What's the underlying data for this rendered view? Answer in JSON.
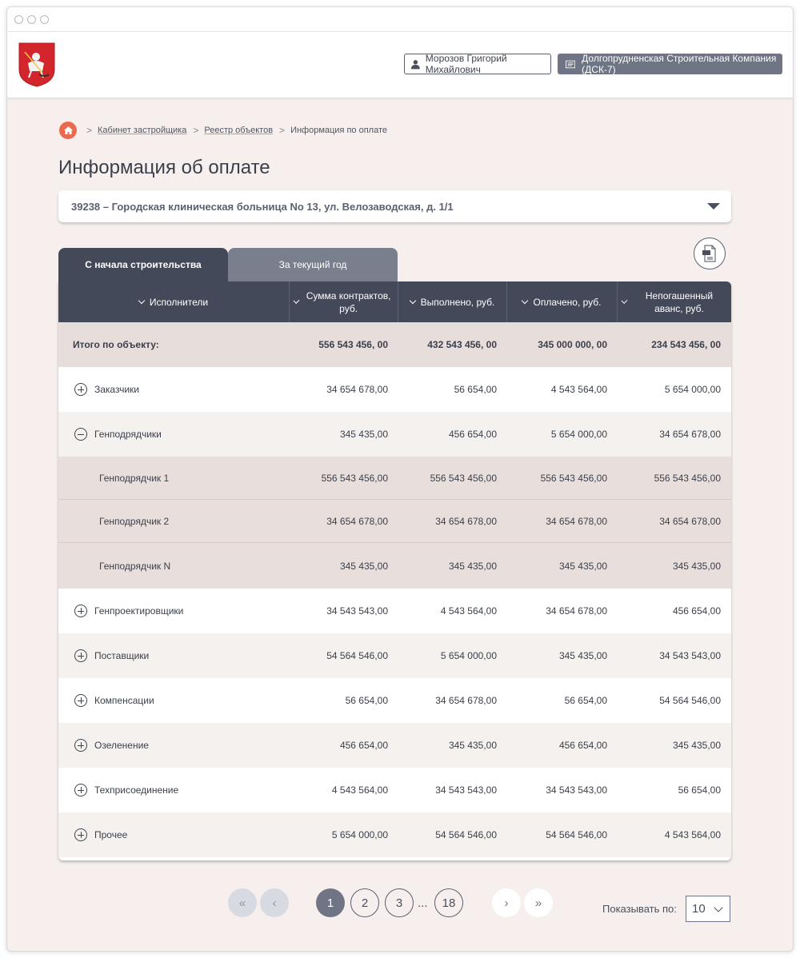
{
  "header": {
    "user_name": "Морозов Григорий Михайлович",
    "company_name": "Долгопрудненская Строительная Компания (ДСК-7)"
  },
  "breadcrumb": {
    "items": [
      "Кабинет застройщика",
      "Реестр объектов"
    ],
    "current": "Информация по оплате"
  },
  "page_title": "Информация об оплате",
  "object_select": {
    "value": "39238 – Городская клиническая больница No 13, ул. Велозаводская, д. 1/1"
  },
  "tabs": [
    {
      "label": "С начала строительства",
      "active": true
    },
    {
      "label": "За текущий год",
      "active": false
    }
  ],
  "table": {
    "columns": [
      "Исполнители",
      "Сумма контрактов, руб.",
      "Выполнено, руб.",
      "Оплачено, руб.",
      "Непогашенный аванс, руб."
    ],
    "total": {
      "label": "Итого по объекту:",
      "values": [
        "556 543 456, 00",
        "432 543 456, 00",
        "345 000 000, 00",
        "234 543 456, 00"
      ]
    },
    "groups": [
      {
        "name": "Заказчики",
        "expanded": false,
        "values": [
          "34 654 678,00",
          "56 654,00",
          "4 543 564,00",
          "5 654 000,00"
        ]
      },
      {
        "name": "Генподрядчики",
        "expanded": true,
        "values": [
          "345 435,00",
          "456 654,00",
          "5 654 000,00",
          "34 654 678,00"
        ],
        "children": [
          {
            "name": "Генподрядчик 1",
            "values": [
              "556 543 456,00",
              "556 543 456,00",
              "556 543 456,00",
              "556 543 456,00"
            ]
          },
          {
            "name": "Генподрядчик 2",
            "values": [
              "34 654 678,00",
              "34 654 678,00",
              "34 654 678,00",
              "34 654 678,00"
            ]
          },
          {
            "name": "Генподрядчик N",
            "values": [
              "345 435,00",
              "345 435,00",
              "345 435,00",
              "345 435,00"
            ]
          }
        ]
      },
      {
        "name": "Генпроектировщики",
        "expanded": false,
        "values": [
          "34 543 543,00",
          "4 543 564,00",
          "34 654 678,00",
          "456 654,00"
        ]
      },
      {
        "name": "Поставщики",
        "expanded": false,
        "values": [
          "54 564 546,00",
          "5 654 000,00",
          "345 435,00",
          "34 543 543,00"
        ]
      },
      {
        "name": "Компенсации",
        "expanded": false,
        "values": [
          "56 654,00",
          "34 654 678,00",
          "56 654,00",
          "54 564 546,00"
        ]
      },
      {
        "name": "Озеленение",
        "expanded": false,
        "values": [
          "456 654,00",
          "345 435,00",
          "456 654,00",
          "345 435,00"
        ]
      },
      {
        "name": "Техприсоединение",
        "expanded": false,
        "values": [
          "4 543 564,00",
          "34 543 543,00",
          "34 543 543,00",
          "56 654,00"
        ]
      },
      {
        "name": "Прочее",
        "expanded": false,
        "values": [
          "5 654 000,00",
          "54 564 546,00",
          "54 564 546,00",
          "4 543 564,00"
        ]
      }
    ]
  },
  "pagination": {
    "first": "«",
    "prev": "‹",
    "pages": [
      "1",
      "2",
      "3"
    ],
    "ellipsis": "...",
    "last_page": "18",
    "current": "1",
    "next": "›",
    "last": "»",
    "show_label": "Показывать по:",
    "per_page": "10"
  },
  "colors": {
    "accent": "#434959",
    "home": "#ea6a4f",
    "background": "#f6efed"
  }
}
